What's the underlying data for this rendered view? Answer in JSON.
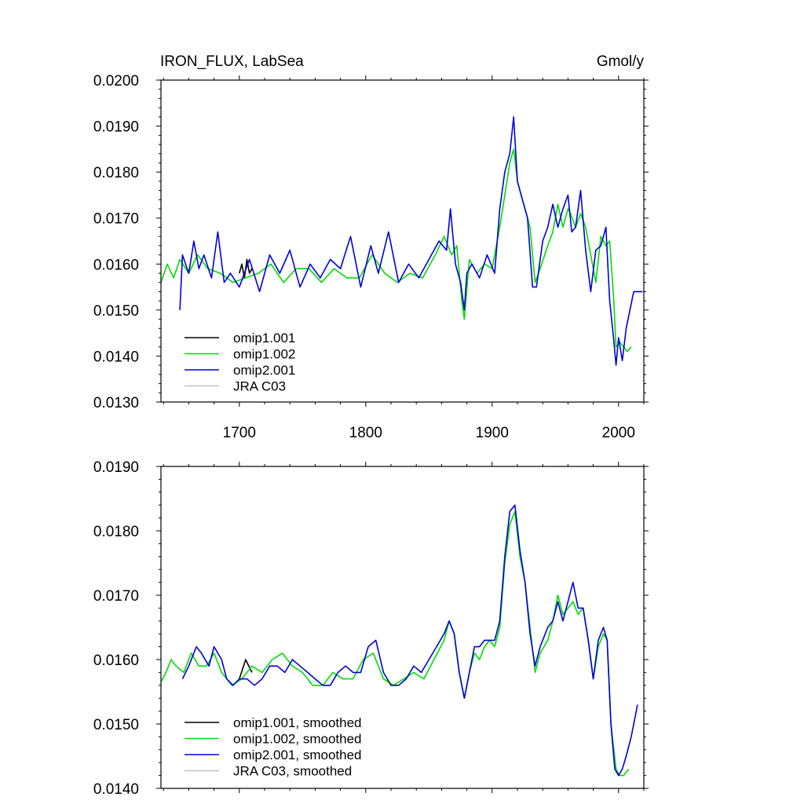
{
  "header": {
    "title": "IRON_FLUX, LabSea",
    "units": "Gmol/y"
  },
  "colors": {
    "omip1_001": "#000000",
    "omip1_002": "#00dd00",
    "omip2_001": "#0000dd",
    "jra_c03": "#c0c0c0"
  },
  "chart_data": [
    {
      "type": "line",
      "title": "IRON_FLUX, LabSea",
      "units_label": "Gmol/y",
      "xlim": [
        1638,
        2020
      ],
      "ylim": [
        0.013,
        0.02
      ],
      "xticks": [
        1700,
        1800,
        1900,
        2000
      ],
      "xtick_labels": [
        "1700",
        "1800",
        "1900",
        "2000"
      ],
      "yticks": [
        0.013,
        0.014,
        0.015,
        0.016,
        0.017,
        0.018,
        0.019,
        0.02
      ],
      "ytick_labels": [
        "0.0130",
        "0.0140",
        "0.0150",
        "0.0160",
        "0.0170",
        "0.0180",
        "0.0190",
        "0.0200"
      ],
      "legend_position": "bottom-left",
      "series": [
        {
          "name": "omip1.001",
          "color": "#000000",
          "x": [
            1700,
            1702,
            1704,
            1706,
            1708,
            1710
          ],
          "y": [
            0.0158,
            0.016,
            0.0157,
            0.0161,
            0.0158,
            0.0159
          ]
        },
        {
          "name": "omip1.002",
          "color": "#00dd00",
          "x": [
            1638,
            1643,
            1648,
            1653,
            1660,
            1667,
            1675,
            1685,
            1695,
            1705,
            1715,
            1725,
            1735,
            1745,
            1755,
            1765,
            1775,
            1785,
            1795,
            1805,
            1815,
            1825,
            1835,
            1845,
            1855,
            1862,
            1868,
            1872,
            1876,
            1878,
            1882,
            1888,
            1894,
            1900,
            1906,
            1910,
            1914,
            1917,
            1920,
            1924,
            1930,
            1934,
            1938,
            1944,
            1948,
            1952,
            1956,
            1960,
            1962,
            1966,
            1970,
            1974,
            1978,
            1982,
            1986,
            1990,
            1993,
            1996,
            1998,
            2001,
            2004,
            2007,
            2010
          ],
          "y": [
            0.0156,
            0.016,
            0.0157,
            0.0161,
            0.0158,
            0.0162,
            0.0159,
            0.0158,
            0.0156,
            0.0157,
            0.0158,
            0.016,
            0.0156,
            0.0159,
            0.0159,
            0.0156,
            0.0159,
            0.0157,
            0.0157,
            0.0162,
            0.0158,
            0.0156,
            0.0158,
            0.0157,
            0.0162,
            0.0166,
            0.0162,
            0.0164,
            0.0152,
            0.0148,
            0.0161,
            0.0158,
            0.016,
            0.0159,
            0.0168,
            0.0175,
            0.0182,
            0.0185,
            0.0178,
            0.0174,
            0.0168,
            0.0156,
            0.0159,
            0.0164,
            0.0167,
            0.0173,
            0.0168,
            0.0172,
            0.0171,
            0.0168,
            0.0171,
            0.0168,
            0.0162,
            0.0156,
            0.0166,
            0.0164,
            0.0165,
            0.0153,
            0.0142,
            0.0143,
            0.0142,
            0.0141,
            0.0142
          ]
        },
        {
          "name": "omip2.001",
          "color": "#0000dd",
          "x": [
            1653,
            1655,
            1660,
            1664,
            1668,
            1672,
            1678,
            1683,
            1688,
            1693,
            1700,
            1708,
            1716,
            1724,
            1732,
            1740,
            1748,
            1756,
            1764,
            1772,
            1780,
            1788,
            1796,
            1804,
            1810,
            1818,
            1826,
            1834,
            1842,
            1850,
            1858,
            1864,
            1867,
            1871,
            1875,
            1878,
            1880,
            1884,
            1890,
            1896,
            1902,
            1906,
            1910,
            1914,
            1917,
            1920,
            1924,
            1928,
            1932,
            1935,
            1940,
            1944,
            1948,
            1952,
            1956,
            1960,
            1963,
            1966,
            1970,
            1974,
            1978,
            1982,
            1986,
            1990,
            1993,
            1996,
            1998,
            2000,
            2003,
            2006,
            2009,
            2012,
            2015,
            2019
          ],
          "y": [
            0.015,
            0.0162,
            0.0158,
            0.0165,
            0.0159,
            0.0162,
            0.0157,
            0.0167,
            0.0156,
            0.0158,
            0.0155,
            0.0161,
            0.0154,
            0.0162,
            0.0158,
            0.0163,
            0.0155,
            0.016,
            0.0157,
            0.0161,
            0.0159,
            0.0166,
            0.0155,
            0.0164,
            0.0158,
            0.0167,
            0.0156,
            0.016,
            0.0157,
            0.0161,
            0.0165,
            0.0163,
            0.0172,
            0.016,
            0.0156,
            0.015,
            0.0158,
            0.016,
            0.0157,
            0.0162,
            0.0158,
            0.0172,
            0.018,
            0.0184,
            0.0192,
            0.0178,
            0.0174,
            0.017,
            0.0155,
            0.0155,
            0.0165,
            0.0168,
            0.0173,
            0.0168,
            0.0172,
            0.0175,
            0.0167,
            0.0168,
            0.0176,
            0.0163,
            0.0154,
            0.0163,
            0.0164,
            0.0168,
            0.0152,
            0.0144,
            0.0138,
            0.0144,
            0.0139,
            0.0146,
            0.015,
            0.0154,
            0.0154,
            0.0154
          ]
        },
        {
          "name": "JRA C03",
          "color": "#c0c0c0",
          "x": [],
          "y": []
        }
      ]
    },
    {
      "type": "line",
      "title": "",
      "xlim": [
        1638,
        2020
      ],
      "ylim": [
        0.014,
        0.019
      ],
      "xticks": [
        1700,
        1800,
        1900,
        2000
      ],
      "xtick_labels": [
        "",
        "",
        "",
        ""
      ],
      "yticks": [
        0.014,
        0.015,
        0.016,
        0.017,
        0.018,
        0.019
      ],
      "ytick_labels": [
        "0.0140",
        "0.0150",
        "0.0160",
        "0.0170",
        "0.0180",
        "0.0190"
      ],
      "legend_position": "bottom-left",
      "series": [
        {
          "name": "omip1.001, smoothed",
          "color": "#000000",
          "x": [
            1700,
            1705,
            1710
          ],
          "y": [
            0.0157,
            0.016,
            0.0158
          ]
        },
        {
          "name": "omip1.002, smoothed",
          "color": "#00dd00",
          "x": [
            1638,
            1642,
            1646,
            1650,
            1656,
            1662,
            1668,
            1674,
            1680,
            1686,
            1694,
            1702,
            1710,
            1718,
            1726,
            1734,
            1742,
            1750,
            1758,
            1766,
            1774,
            1782,
            1790,
            1798,
            1806,
            1814,
            1822,
            1830,
            1838,
            1846,
            1854,
            1862,
            1866,
            1870,
            1874,
            1878,
            1882,
            1886,
            1890,
            1894,
            1898,
            1902,
            1906,
            1910,
            1914,
            1918,
            1922,
            1926,
            1930,
            1934,
            1938,
            1944,
            1948,
            1952,
            1956,
            1960,
            1964,
            1968,
            1972,
            1976,
            1980,
            1984,
            1988,
            1991,
            1994,
            1998,
            2001,
            2004,
            2008
          ],
          "y": [
            0.01565,
            0.0158,
            0.016,
            0.0159,
            0.0158,
            0.0161,
            0.0159,
            0.0159,
            0.0161,
            0.0158,
            0.0156,
            0.0157,
            0.0159,
            0.0158,
            0.016,
            0.0161,
            0.0159,
            0.0158,
            0.0156,
            0.0156,
            0.0158,
            0.0157,
            0.0157,
            0.016,
            0.0161,
            0.0157,
            0.0156,
            0.0157,
            0.0158,
            0.0157,
            0.016,
            0.0163,
            0.0166,
            0.0164,
            0.0158,
            0.0154,
            0.0158,
            0.0161,
            0.016,
            0.0162,
            0.0163,
            0.0162,
            0.0165,
            0.0175,
            0.0181,
            0.0183,
            0.0176,
            0.0172,
            0.0165,
            0.0158,
            0.0161,
            0.0163,
            0.0166,
            0.017,
            0.0167,
            0.0168,
            0.0169,
            0.0167,
            0.0168,
            0.0163,
            0.0157,
            0.0162,
            0.0164,
            0.0163,
            0.015,
            0.0143,
            0.0142,
            0.0142,
            0.0143
          ]
        },
        {
          "name": "omip2.001, smoothed",
          "color": "#0000dd",
          "x": [
            1655,
            1660,
            1666,
            1670,
            1676,
            1680,
            1686,
            1690,
            1695,
            1700,
            1706,
            1712,
            1718,
            1724,
            1730,
            1736,
            1742,
            1748,
            1754,
            1760,
            1766,
            1772,
            1778,
            1784,
            1790,
            1796,
            1802,
            1808,
            1814,
            1820,
            1826,
            1832,
            1838,
            1844,
            1850,
            1856,
            1862,
            1866,
            1870,
            1874,
            1878,
            1882,
            1886,
            1890,
            1894,
            1898,
            1902,
            1906,
            1910,
            1914,
            1918,
            1922,
            1926,
            1930,
            1934,
            1938,
            1944,
            1948,
            1952,
            1956,
            1960,
            1964,
            1968,
            1972,
            1976,
            1980,
            1984,
            1988,
            1991,
            1994,
            1997,
            2000,
            2003,
            2006,
            2010,
            2015
          ],
          "y": [
            0.0157,
            0.0159,
            0.0162,
            0.0161,
            0.0159,
            0.0162,
            0.016,
            0.0157,
            0.0156,
            0.0157,
            0.0157,
            0.0156,
            0.0157,
            0.0159,
            0.0159,
            0.0158,
            0.016,
            0.0159,
            0.0158,
            0.0157,
            0.0156,
            0.0156,
            0.0158,
            0.0159,
            0.0158,
            0.0158,
            0.0162,
            0.0163,
            0.0158,
            0.0156,
            0.0156,
            0.0157,
            0.0159,
            0.0158,
            0.016,
            0.0162,
            0.0164,
            0.0166,
            0.0164,
            0.0158,
            0.0154,
            0.0158,
            0.0162,
            0.0162,
            0.0163,
            0.0163,
            0.0163,
            0.0166,
            0.0176,
            0.0183,
            0.0184,
            0.0177,
            0.0172,
            0.0164,
            0.0159,
            0.0162,
            0.0165,
            0.0166,
            0.0169,
            0.0166,
            0.0169,
            0.0172,
            0.0168,
            0.0168,
            0.0163,
            0.0157,
            0.0163,
            0.0165,
            0.0163,
            0.015,
            0.0143,
            0.0142,
            0.0143,
            0.0145,
            0.0148,
            0.0153
          ]
        },
        {
          "name": "JRA C03, smoothed",
          "color": "#c0c0c0",
          "x": [],
          "y": []
        }
      ]
    }
  ]
}
